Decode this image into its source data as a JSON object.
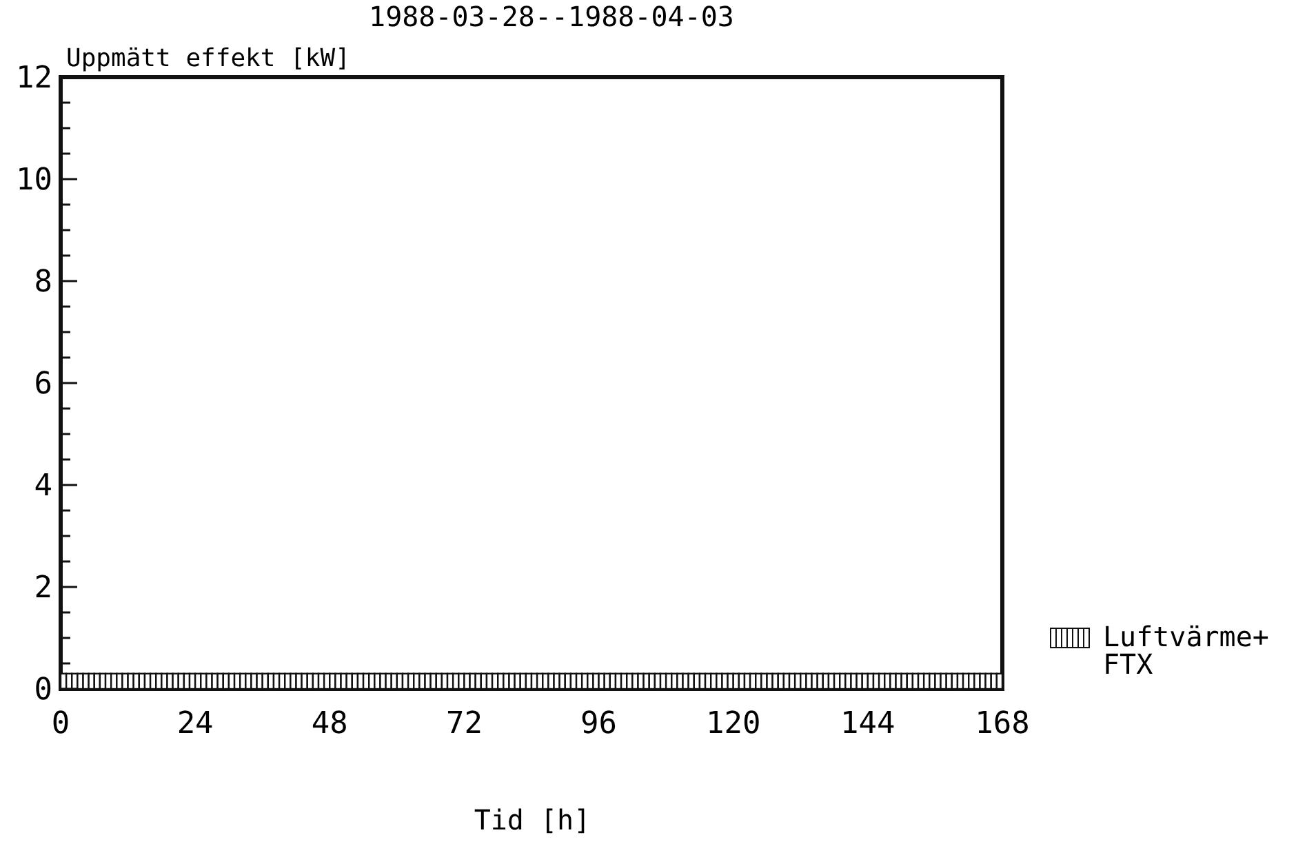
{
  "chart_data": {
    "type": "bar",
    "title": "1988-03-28--1988-04-03",
    "ylabel": "Uppmätt effekt [kW]",
    "xlabel": "Tid [h]",
    "x": [
      0.5,
      1.5,
      2.5,
      3.5,
      4.5,
      5.5,
      6.5,
      7.5,
      8.5,
      9.5,
      10.5,
      11.5,
      12.5,
      13.5,
      14.5,
      15.5,
      16.5,
      17.5,
      18.5,
      19.5,
      20.5,
      21.5,
      22.5,
      23.5,
      24.5,
      25.5,
      26.5,
      27.5,
      28.5,
      29.5,
      30.5,
      31.5,
      32.5,
      33.5,
      34.5,
      35.5,
      36.5,
      37.5,
      38.5,
      39.5,
      40.5,
      41.5,
      42.5,
      43.5,
      44.5,
      45.5,
      46.5,
      47.5,
      48.5,
      49.5,
      50.5,
      51.5,
      52.5,
      53.5,
      54.5,
      55.5,
      56.5,
      57.5,
      58.5,
      59.5,
      60.5,
      61.5,
      62.5,
      63.5,
      64.5,
      65.5,
      66.5,
      67.5,
      68.5,
      69.5,
      70.5,
      71.5,
      72.5,
      73.5,
      74.5,
      75.5,
      76.5,
      77.5,
      78.5,
      79.5,
      80.5,
      81.5,
      82.5,
      83.5,
      84.5,
      85.5,
      86.5,
      87.5,
      88.5,
      89.5,
      90.5,
      91.5,
      92.5,
      93.5,
      94.5,
      95.5,
      96.5,
      97.5,
      98.5,
      99.5,
      100.5,
      101.5,
      102.5,
      103.5,
      104.5,
      105.5,
      106.5,
      107.5,
      108.5,
      109.5,
      110.5,
      111.5,
      112.5,
      113.5,
      114.5,
      115.5,
      116.5,
      117.5,
      118.5,
      119.5,
      120.5,
      121.5,
      122.5,
      123.5,
      124.5,
      125.5,
      126.5,
      127.5,
      128.5,
      129.5,
      130.5,
      131.5,
      132.5,
      133.5,
      134.5,
      135.5,
      136.5,
      137.5,
      138.5,
      139.5,
      140.5,
      141.5,
      142.5,
      143.5,
      144.5,
      145.5,
      146.5,
      147.5,
      148.5,
      149.5,
      150.5,
      151.5,
      152.5,
      153.5,
      154.5,
      155.5,
      156.5,
      157.5,
      158.5,
      159.5,
      160.5,
      161.5,
      162.5,
      163.5,
      164.5,
      165.5,
      166.5,
      167.5
    ],
    "series": [
      {
        "name": "Luftvärme+\nFTX",
        "color": "#ffffff",
        "values": [
          0.3,
          0.3,
          0.3,
          0.3,
          0.3,
          0.3,
          0.3,
          0.3,
          0.3,
          0.3,
          0.3,
          0.3,
          0.3,
          0.3,
          0.3,
          0.3,
          0.3,
          0.3,
          0.3,
          0.3,
          0.3,
          0.3,
          0.3,
          0.3,
          0.3,
          0.3,
          0.3,
          0.3,
          0.3,
          0.3,
          0.3,
          0.3,
          0.3,
          0.3,
          0.3,
          0.3,
          0.3,
          0.3,
          0.3,
          0.3,
          0.3,
          0.3,
          0.3,
          0.3,
          0.3,
          0.3,
          0.3,
          0.3,
          0.3,
          0.3,
          0.3,
          0.3,
          0.3,
          0.3,
          0.3,
          0.3,
          0.3,
          0.3,
          0.3,
          0.3,
          0.3,
          0.3,
          0.3,
          0.3,
          0.3,
          0.3,
          0.3,
          0.3,
          0.3,
          0.3,
          0.3,
          0.3,
          0.3,
          0.3,
          0.3,
          0.3,
          0.3,
          0.3,
          0.3,
          0.3,
          0.3,
          0.3,
          0.3,
          0.3,
          0.3,
          0.3,
          0.3,
          0.3,
          0.3,
          0.3,
          0.3,
          0.3,
          0.3,
          0.3,
          0.3,
          0.3,
          0.3,
          0.3,
          0.3,
          0.3,
          0.3,
          0.3,
          0.3,
          0.3,
          0.3,
          0.3,
          0.3,
          0.3,
          0.3,
          0.3,
          0.3,
          0.3,
          0.3,
          0.3,
          0.3,
          0.3,
          0.3,
          0.3,
          0.3,
          0.3,
          0.3,
          0.3,
          0.3,
          0.3,
          0.3,
          0.3,
          0.3,
          0.3,
          0.3,
          0.3,
          0.3,
          0.3,
          0.3,
          0.3,
          0.3,
          0.3,
          0.3,
          0.3,
          0.3,
          0.3,
          0.3,
          0.3,
          0.3,
          0.3,
          0.3,
          0.3,
          0.3,
          0.3,
          0.3,
          0.3,
          0.3,
          0.3,
          0.3,
          0.3,
          0.3,
          0.3,
          0.3,
          0.3,
          0.3,
          0.3,
          0.3,
          0.3,
          0.3,
          0.3,
          0.3,
          0.3,
          0.3,
          0.3
        ]
      }
    ],
    "xlim": [
      0,
      168
    ],
    "xticks": [
      0,
      24,
      48,
      72,
      96,
      120,
      144,
      168
    ],
    "ylim": [
      0,
      12
    ],
    "yticks": [
      0,
      {
        "value": 0.5,
        "label": null
      },
      {
        "value": 1,
        "label": null
      },
      {
        "value": 1.5,
        "label": null
      },
      2,
      {
        "value": 2.5,
        "label": null
      },
      {
        "value": 3,
        "label": null
      },
      {
        "value": 3.5,
        "label": null
      },
      4,
      {
        "value": 4.5,
        "label": null
      },
      {
        "value": 5,
        "label": null
      },
      {
        "value": 5.5,
        "label": null
      },
      6,
      {
        "value": 6.5,
        "label": null
      },
      {
        "value": 7,
        "label": null
      },
      {
        "value": 7.5,
        "label": null
      },
      8,
      {
        "value": 8.5,
        "label": null
      },
      {
        "value": 9,
        "label": null
      },
      {
        "value": 9.5,
        "label": null
      },
      10,
      {
        "value": 10.5,
        "label": null
      },
      {
        "value": 11,
        "label": null
      },
      {
        "value": 11.5,
        "label": null
      },
      12
    ],
    "grid": false,
    "legend": "bottom right"
  }
}
